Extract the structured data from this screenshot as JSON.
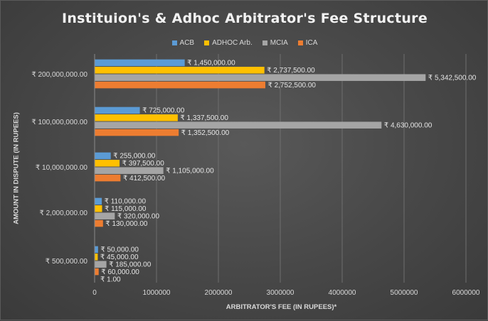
{
  "chart_data": {
    "type": "bar",
    "orientation": "horizontal",
    "title": "Instituion's & Adhoc Arbitrator's Fee Structure",
    "xlabel": "ARBITRATOR'S FEE (IN RUPEES)*",
    "ylabel": "AMOUNT IN DISPUTE (IN RUPEES)",
    "xlim": [
      0,
      6000000
    ],
    "xticks": [
      "0",
      "1000000",
      "2000000",
      "3000000",
      "4000000",
      "5000000",
      "6000000"
    ],
    "grid": "vertical",
    "legend_position": "top",
    "categories": [
      "₹ 200,000,000.00",
      "₹ 100,000,000.00",
      "₹ 10,000,000.00",
      "₹ 2,000,000.00",
      "₹ 500,000.00"
    ],
    "series": [
      {
        "name": "ACB",
        "color": "#5b9bd5",
        "values": [
          1450000,
          725000,
          255000,
          110000,
          50000
        ],
        "labels": [
          "₹ 1,450,000.00",
          "₹ 725,000.00",
          "₹ 255,000.00",
          "₹ 110,000.00",
          "₹ 50,000.00"
        ]
      },
      {
        "name": "ADHOC Arb.",
        "color": "#ffc000",
        "values": [
          2737500,
          1337500,
          397500,
          115000,
          45000
        ],
        "labels": [
          "₹ 2,737,500.00",
          "₹ 1,337,500.00",
          "₹ 397,500.00",
          "₹ 115,000.00",
          "₹ 45,000.00"
        ]
      },
      {
        "name": "MCIA",
        "color": "#a5a5a5",
        "values": [
          5342500,
          4630000,
          1105000,
          320000,
          185000
        ],
        "labels": [
          "₹ 5,342,500.00",
          "₹ 4,630,000.00",
          "₹ 1,105,000.00",
          "₹ 320,000.00",
          "₹ 185,000.00"
        ]
      },
      {
        "name": "ICA",
        "color": "#ed7d31",
        "values": [
          2752500,
          1352500,
          412500,
          130000,
          60000
        ],
        "labels": [
          "₹ 2,752,500.00",
          "₹ 1,352,500.00",
          "₹ 412,500.00",
          "₹ 130,000.00",
          "₹ 60,000.00"
        ]
      }
    ],
    "extra_annotation": "₹ 1.00"
  }
}
